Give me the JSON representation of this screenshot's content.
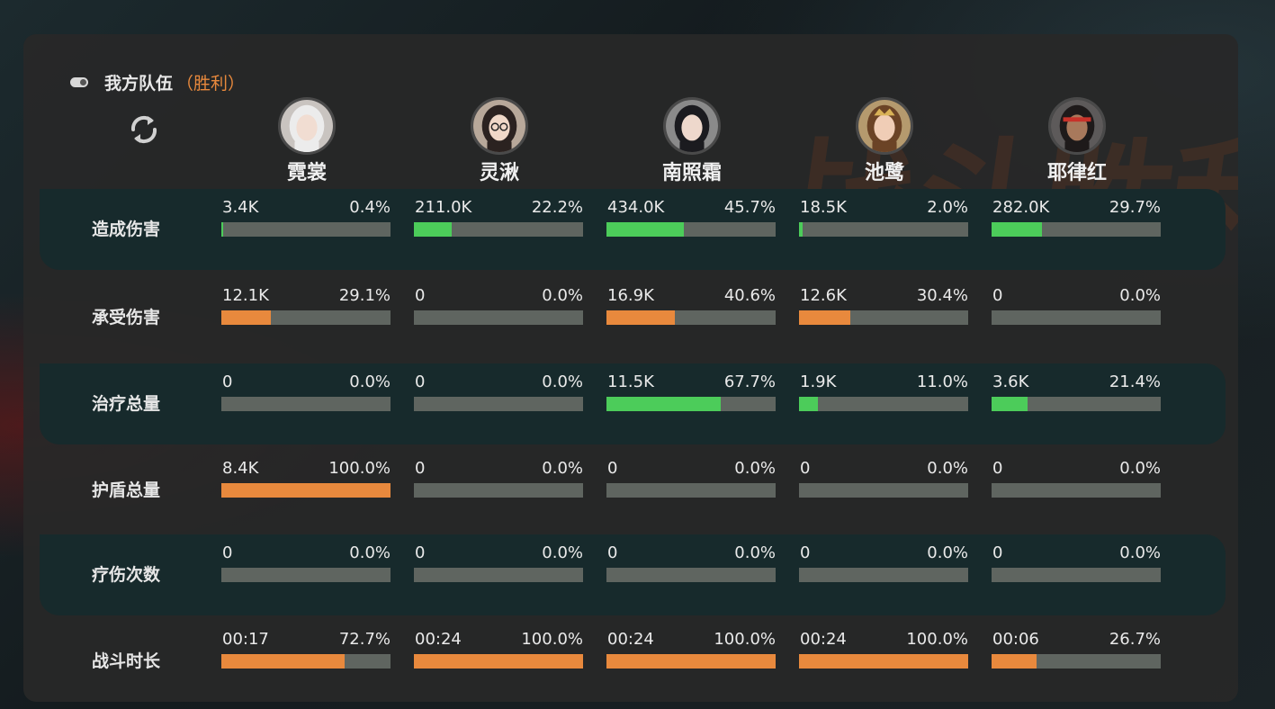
{
  "team": {
    "title": "我方队伍",
    "result": "（胜利）"
  },
  "watermark": "战斗胜利",
  "colors": {
    "green": "#4ccc5a",
    "orange": "#e8893d",
    "track": "#5f6560",
    "result": "#e8893d"
  },
  "heroes": [
    {
      "name": "霓裳",
      "avatar": "avatar-white-hair"
    },
    {
      "name": "灵湫",
      "avatar": "avatar-glasses"
    },
    {
      "name": "南照霜",
      "avatar": "avatar-black-hair"
    },
    {
      "name": "池鹭",
      "avatar": "avatar-gold-crown"
    },
    {
      "name": "耶律红",
      "avatar": "avatar-red-headband"
    }
  ],
  "stats": [
    {
      "label": "造成伤害",
      "color": "green",
      "teal": true,
      "cells": [
        {
          "value": "3.4K",
          "percent": "0.4%",
          "fraction": 0.004
        },
        {
          "value": "211.0K",
          "percent": "22.2%",
          "fraction": 0.222
        },
        {
          "value": "434.0K",
          "percent": "45.7%",
          "fraction": 0.457
        },
        {
          "value": "18.5K",
          "percent": "2.0%",
          "fraction": 0.02
        },
        {
          "value": "282.0K",
          "percent": "29.7%",
          "fraction": 0.297
        }
      ]
    },
    {
      "label": "承受伤害",
      "color": "orange",
      "teal": false,
      "cells": [
        {
          "value": "12.1K",
          "percent": "29.1%",
          "fraction": 0.291
        },
        {
          "value": "0",
          "percent": "0.0%",
          "fraction": 0
        },
        {
          "value": "16.9K",
          "percent": "40.6%",
          "fraction": 0.406
        },
        {
          "value": "12.6K",
          "percent": "30.4%",
          "fraction": 0.304
        },
        {
          "value": "0",
          "percent": "0.0%",
          "fraction": 0
        }
      ]
    },
    {
      "label": "治疗总量",
      "color": "green",
      "teal": true,
      "cells": [
        {
          "value": "0",
          "percent": "0.0%",
          "fraction": 0
        },
        {
          "value": "0",
          "percent": "0.0%",
          "fraction": 0
        },
        {
          "value": "11.5K",
          "percent": "67.7%",
          "fraction": 0.677
        },
        {
          "value": "1.9K",
          "percent": "11.0%",
          "fraction": 0.11
        },
        {
          "value": "3.6K",
          "percent": "21.4%",
          "fraction": 0.214
        }
      ]
    },
    {
      "label": "护盾总量",
      "color": "orange",
      "teal": false,
      "cells": [
        {
          "value": "8.4K",
          "percent": "100.0%",
          "fraction": 1.0
        },
        {
          "value": "0",
          "percent": "0.0%",
          "fraction": 0
        },
        {
          "value": "0",
          "percent": "0.0%",
          "fraction": 0
        },
        {
          "value": "0",
          "percent": "0.0%",
          "fraction": 0
        },
        {
          "value": "0",
          "percent": "0.0%",
          "fraction": 0
        }
      ]
    },
    {
      "label": "疗伤次数",
      "color": "green",
      "teal": true,
      "cells": [
        {
          "value": "0",
          "percent": "0.0%",
          "fraction": 0
        },
        {
          "value": "0",
          "percent": "0.0%",
          "fraction": 0
        },
        {
          "value": "0",
          "percent": "0.0%",
          "fraction": 0
        },
        {
          "value": "0",
          "percent": "0.0%",
          "fraction": 0
        },
        {
          "value": "0",
          "percent": "0.0%",
          "fraction": 0
        }
      ]
    },
    {
      "label": "战斗时长",
      "color": "orange",
      "teal": false,
      "cells": [
        {
          "value": "00:17",
          "percent": "72.7%",
          "fraction": 0.727
        },
        {
          "value": "00:24",
          "percent": "100.0%",
          "fraction": 1.0
        },
        {
          "value": "00:24",
          "percent": "100.0%",
          "fraction": 1.0
        },
        {
          "value": "00:24",
          "percent": "100.0%",
          "fraction": 1.0
        },
        {
          "value": "00:06",
          "percent": "26.7%",
          "fraction": 0.267
        }
      ]
    }
  ]
}
